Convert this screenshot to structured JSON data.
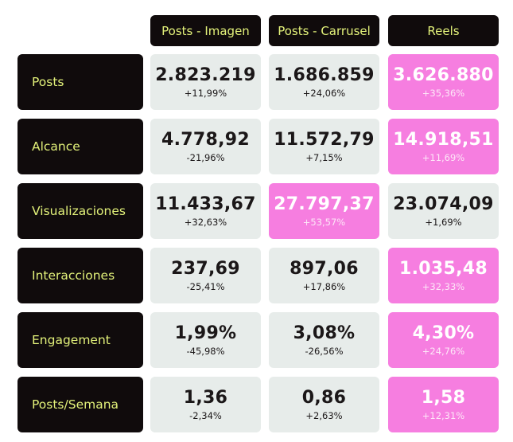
{
  "chart_data": {
    "type": "table",
    "columns": [
      "Posts - Imagen",
      "Posts - Carrusel",
      "Reels"
    ],
    "rows": [
      {
        "label": "Posts",
        "cells": [
          {
            "value": "2.823.219",
            "delta": "+11,99%",
            "highlight": false
          },
          {
            "value": "1.686.859",
            "delta": "+24,06%",
            "highlight": false
          },
          {
            "value": "3.626.880",
            "delta": "+35,36%",
            "highlight": true
          }
        ]
      },
      {
        "label": "Alcance",
        "cells": [
          {
            "value": "4.778,92",
            "delta": "-21,96%",
            "highlight": false
          },
          {
            "value": "11.572,79",
            "delta": "+7,15%",
            "highlight": false
          },
          {
            "value": "14.918,51",
            "delta": "+11,69%",
            "highlight": true
          }
        ]
      },
      {
        "label": "Visualizaciones",
        "cells": [
          {
            "value": "11.433,67",
            "delta": "+32,63%",
            "highlight": false
          },
          {
            "value": "27.797,37",
            "delta": "+53,57%",
            "highlight": true
          },
          {
            "value": "23.074,09",
            "delta": "+1,69%",
            "highlight": false
          }
        ]
      },
      {
        "label": "Interacciones",
        "cells": [
          {
            "value": "237,69",
            "delta": "-25,41%",
            "highlight": false
          },
          {
            "value": "897,06",
            "delta": "+17,86%",
            "highlight": false
          },
          {
            "value": "1.035,48",
            "delta": "+32,33%",
            "highlight": true
          }
        ]
      },
      {
        "label": "Engagement",
        "cells": [
          {
            "value": "1,99%",
            "delta": "-45,98%",
            "highlight": false
          },
          {
            "value": "3,08%",
            "delta": "-26,56%",
            "highlight": false
          },
          {
            "value": "4,30%",
            "delta": "+24,76%",
            "highlight": true
          }
        ]
      },
      {
        "label": "Posts/Semana",
        "cells": [
          {
            "value": "1,36",
            "delta": "-2,34%",
            "highlight": false
          },
          {
            "value": "0,86",
            "delta": "+2,63%",
            "highlight": false
          },
          {
            "value": "1,58",
            "delta": "+12,31%",
            "highlight": true
          }
        ]
      }
    ]
  },
  "colors": {
    "label_bg": "#100b0c",
    "label_text": "#e3f27a",
    "cell_bg": "#e7ecea",
    "highlight_bg": "#f67ee0"
  }
}
